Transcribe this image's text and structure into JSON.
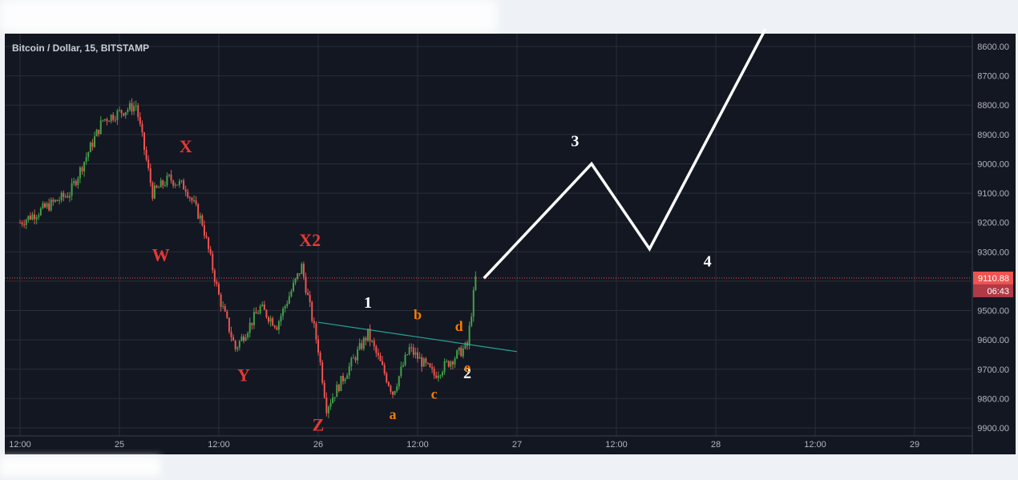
{
  "header": {
    "title": "Bitcoin / Dollar, 15, BITSTAMP"
  },
  "price_axis": {
    "ticks": [
      "9900.00",
      "9800.00",
      "9700.00",
      "9600.00",
      "9500.00",
      "9400.00",
      "9300.00",
      "9200.00",
      "9100.00",
      "9000.00",
      "8900.00",
      "8800.00",
      "8700.00",
      "8600.00"
    ],
    "last_price_label": "9110.88",
    "countdown_label": "06:43",
    "last_price_color": "#e8404f"
  },
  "time_axis": {
    "ticks": [
      "12:00",
      "25",
      "12:00",
      "26",
      "12:00",
      "27",
      "12:00",
      "28",
      "12:00",
      "29"
    ]
  },
  "colors": {
    "background": "#131722",
    "up_candle": "#43a047",
    "down_candle": "#ef5350",
    "grid": "#2a2e39",
    "axis_text": "#b2b5be",
    "trendline": "#26a69a",
    "projection": "#ffffff",
    "wave_red": "#e53935",
    "wave_orange": "#f57c00",
    "wave_white": "#ffffff"
  },
  "annotations": {
    "red": [
      "X",
      "W",
      "X2",
      "Y",
      "Z"
    ],
    "orange": [
      "a",
      "b",
      "c",
      "d",
      "e"
    ],
    "white": [
      "1",
      "2",
      "3",
      "4"
    ]
  },
  "chart_data": {
    "type": "candlestick",
    "title": "Bitcoin / Dollar, 15, BITSTAMP",
    "ylim": [
      8570,
      9960
    ],
    "y_ticks": [
      8600,
      8700,
      8800,
      8900,
      9000,
      9100,
      9200,
      9300,
      9400,
      9500,
      9600,
      9700,
      9800,
      9900
    ],
    "last_price": 9110.88,
    "approx_price_path": [
      [
        "24 12:00",
        9300
      ],
      [
        "24 18:00",
        9400
      ],
      [
        "24 22:00",
        9650
      ],
      [
        "25 02:00",
        9700
      ],
      [
        "25 04:00",
        9400
      ],
      [
        "25 06:00",
        9450
      ],
      [
        "25 08:00",
        9420
      ],
      [
        "25 10:00",
        9300
      ],
      [
        "25 12:00",
        9050
      ],
      [
        "25 14:00",
        8870
      ],
      [
        "25 17:00",
        9010
      ],
      [
        "25 19:00",
        8950
      ],
      [
        "25 22:00",
        9150
      ],
      [
        "26 00:00",
        8870
      ],
      [
        "26 01:00",
        8670
      ],
      [
        "26 06:00",
        8920
      ],
      [
        "26 09:00",
        8720
      ],
      [
        "26 11:00",
        8870
      ],
      [
        "26 14:00",
        8780
      ],
      [
        "26 18:00",
        8880
      ],
      [
        "26 19:00",
        9110
      ]
    ],
    "trendline": {
      "start": [
        "26 00:00",
        8960
      ],
      "end": [
        "27 00:00",
        8860
      ]
    },
    "projection": [
      [
        "26 20:00",
        9110
      ],
      [
        "27 09:00",
        9500
      ],
      [
        "27 16:00",
        9210
      ],
      [
        "28 06:00",
        9960
      ]
    ],
    "wave_labels": [
      {
        "text": "X",
        "time": "25 08:00",
        "price": 9540,
        "group": "red"
      },
      {
        "text": "W",
        "time": "25 05:00",
        "price": 9170,
        "group": "red"
      },
      {
        "text": "X2",
        "time": "25 23:00",
        "price": 9220,
        "group": "red"
      },
      {
        "text": "Y",
        "time": "25 15:00",
        "price": 8760,
        "group": "red"
      },
      {
        "text": "Z",
        "time": "26 00:00",
        "price": 8590,
        "group": "red"
      },
      {
        "text": "1",
        "time": "26 06:00",
        "price": 9010,
        "group": "white"
      },
      {
        "text": "2",
        "time": "26 18:00",
        "price": 8770,
        "group": "white"
      },
      {
        "text": "3",
        "time": "27 07:00",
        "price": 9560,
        "group": "white"
      },
      {
        "text": "4",
        "time": "27 23:00",
        "price": 9150,
        "group": "white"
      },
      {
        "text": "a",
        "time": "26 09:00",
        "price": 8630,
        "group": "orange"
      },
      {
        "text": "b",
        "time": "26 12:00",
        "price": 8970,
        "group": "orange"
      },
      {
        "text": "c",
        "time": "26 14:00",
        "price": 8700,
        "group": "orange"
      },
      {
        "text": "d",
        "time": "26 17:00",
        "price": 8930,
        "group": "orange"
      },
      {
        "text": "e",
        "time": "26 18:00",
        "price": 8790,
        "group": "orange"
      }
    ]
  }
}
